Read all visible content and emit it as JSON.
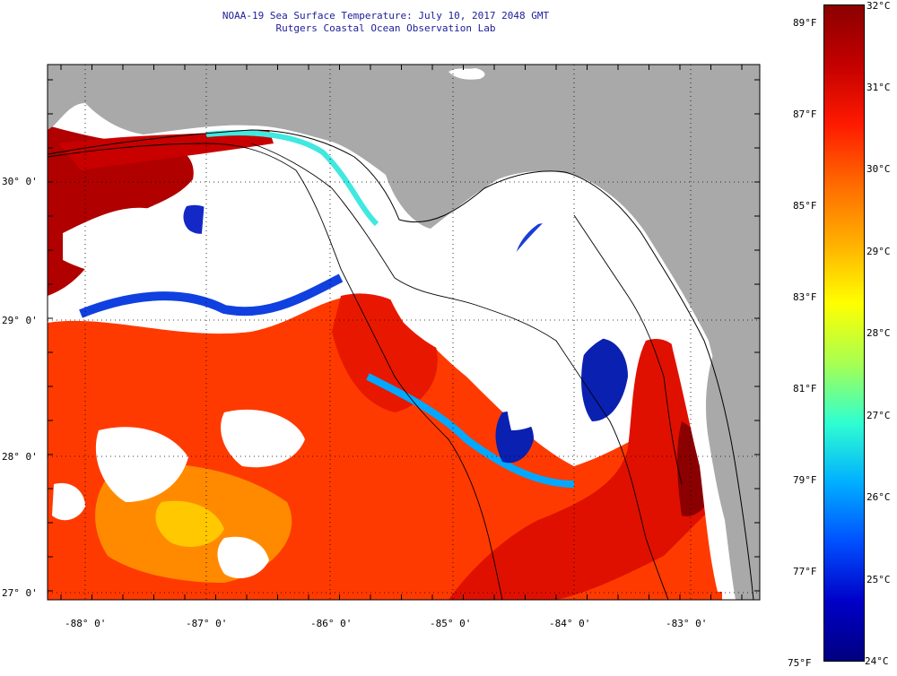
{
  "title": {
    "line1": "NOAA-19 Sea Surface Temperature:  July 10, 2017 2048 GMT",
    "line2": "Rutgers Coastal Ocean Observation Lab"
  },
  "axes": {
    "lon_labels": [
      "-88° 0'",
      "-87° 0'",
      "-86° 0'",
      "-85° 0'",
      "-84° 0'",
      "-83° 0'"
    ],
    "lat_labels": [
      "30° 0'",
      "29° 0'",
      "28° 0'",
      "27° 0'"
    ]
  },
  "colorbar": {
    "f_labels": [
      "89°F",
      "87°F",
      "85°F",
      "83°F",
      "81°F",
      "79°F",
      "77°F",
      "75°F"
    ],
    "c_labels": [
      "32°C",
      "31°C",
      "30°C",
      "29°C",
      "28°C",
      "27°C",
      "26°C",
      "25°C",
      "24°C"
    ],
    "colors": [
      "#8b0000",
      "#c40000",
      "#ff1a00",
      "#ff6a00",
      "#ffb000",
      "#ffff00",
      "#a8ff50",
      "#30ffd0",
      "#00b0ff",
      "#0050ff",
      "#0000c8",
      "#000080"
    ]
  },
  "colors": {
    "land": "#a9a9a9",
    "cloud": "#ffffff",
    "frame": "#000000"
  }
}
